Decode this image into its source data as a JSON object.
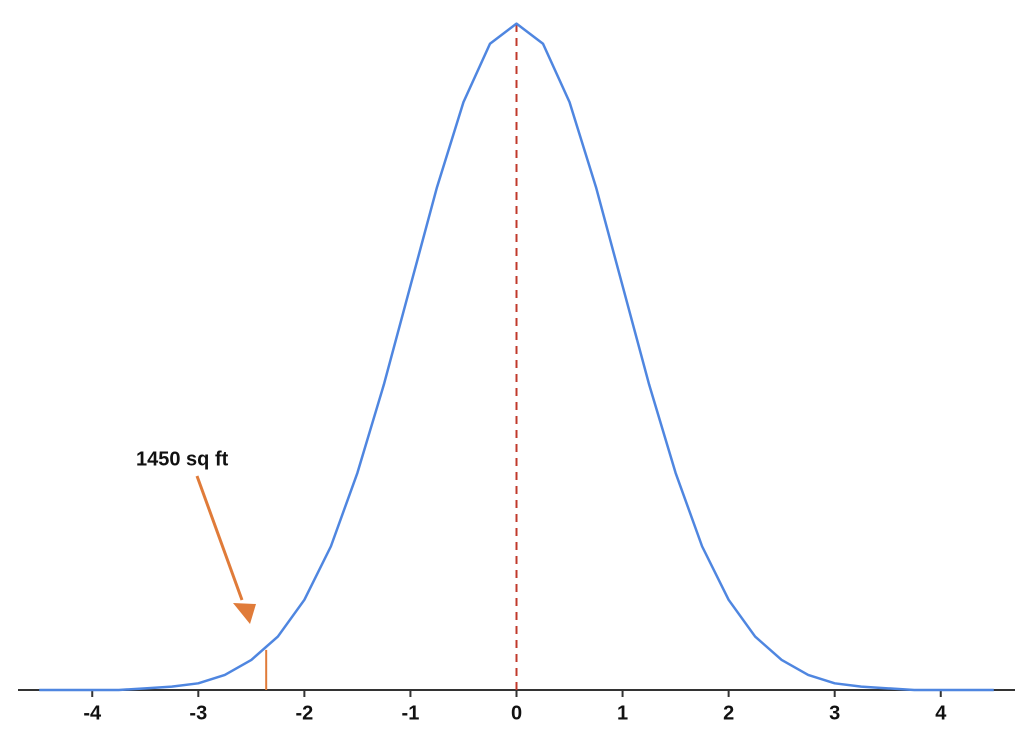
{
  "chart_data": {
    "type": "line",
    "x": [
      -4.5,
      -4.25,
      -4,
      -3.75,
      -3.5,
      -3.25,
      -3,
      -2.75,
      -2.5,
      -2.25,
      -2,
      -1.75,
      -1.5,
      -1.25,
      -1,
      -0.75,
      -0.5,
      -0.25,
      0,
      0.25,
      0.5,
      0.75,
      1,
      1.25,
      1.5,
      1.75,
      2,
      2.25,
      2.5,
      2.75,
      3,
      3.25,
      3.5,
      3.75,
      4,
      4.25,
      4.5
    ],
    "values": [
      0,
      0,
      0,
      0,
      0.001,
      0.002,
      0.004,
      0.009,
      0.018,
      0.032,
      0.054,
      0.086,
      0.13,
      0.183,
      0.242,
      0.301,
      0.352,
      0.387,
      0.399,
      0.387,
      0.352,
      0.301,
      0.242,
      0.183,
      0.13,
      0.086,
      0.054,
      0.032,
      0.018,
      0.009,
      0.004,
      0.002,
      0.001,
      0,
      0,
      0,
      0
    ],
    "color": "#4f86e0",
    "xlim": [
      -4.7,
      4.7
    ],
    "ylim": [
      0,
      0.4
    ],
    "xticks": [
      -4,
      -3,
      -2,
      -1,
      0,
      1,
      2,
      3,
      4
    ],
    "mean_line": {
      "x": 0,
      "height": 0.399,
      "color": "#c0392b"
    },
    "annotation": {
      "text": "1450 sq ft",
      "x": -2.36,
      "height": 0.024,
      "color": "#e07b39"
    }
  }
}
